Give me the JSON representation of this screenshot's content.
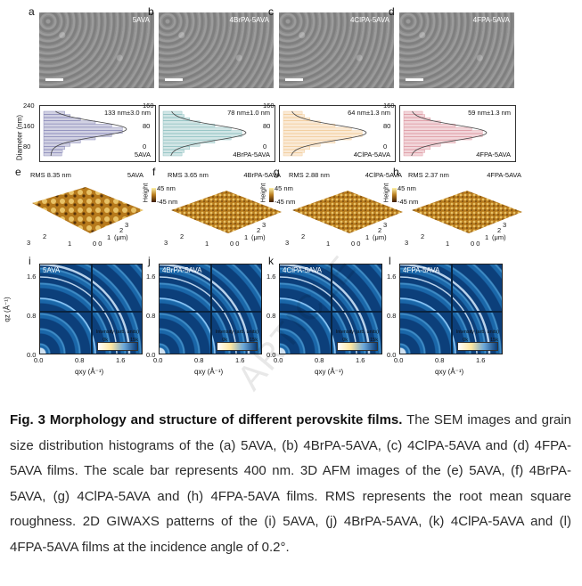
{
  "panels": [
    {
      "letter": "a",
      "film": "5AVA"
    },
    {
      "letter": "b",
      "film": "4BrPA-5AVA"
    },
    {
      "letter": "c",
      "film": "4ClPA-5AVA"
    },
    {
      "letter": "d",
      "film": "4FPA-5AVA"
    }
  ],
  "histograms": [
    {
      "stat": "133 nm±3.0 nm",
      "film": "5AVA",
      "color": "#7b7bb0",
      "yticks": [
        "240",
        "160",
        "80"
      ],
      "ymax": 240
    },
    {
      "stat": "78 nm±1.0 nm",
      "film": "4BrPA-5AVA",
      "color": "#7fb8b8",
      "yticks": [
        "160",
        "80",
        "0"
      ],
      "ymax": 160
    },
    {
      "stat": "64 nm±1.3 nm",
      "film": "4ClPA-5AVA",
      "color": "#f0c48a",
      "yticks": [
        "160",
        "80",
        "0"
      ],
      "ymax": 160
    },
    {
      "stat": "59 nm±1.3 nm",
      "film": "4FPA-5AVA",
      "color": "#d98a95",
      "yticks": [
        "160",
        "80",
        "0"
      ],
      "ymax": 160
    }
  ],
  "hist_ylabel": "Diameter (nm)",
  "afm": [
    {
      "letter": "e",
      "rms": "RMS 8.35 nm",
      "film": "5AVA"
    },
    {
      "letter": "f",
      "rms": "RMS 3.65 nm",
      "film": "4BrPA-5AVA"
    },
    {
      "letter": "g",
      "rms": "RMS 2.88 nm",
      "film": "4ClPA-5AVA"
    },
    {
      "letter": "h",
      "rms": "RMS 2.37 nm",
      "film": "4FPA-5AVA"
    }
  ],
  "afm_height_label": "Height",
  "afm_scale_top": "45 nm",
  "afm_scale_bottom": "-45 nm",
  "afm_unit": "(μm)",
  "giwaxs": [
    {
      "letter": "i",
      "film": "5AVA"
    },
    {
      "letter": "j",
      "film": "4BrPA-5AVA"
    },
    {
      "letter": "k",
      "film": "4ClPA-5AVA"
    },
    {
      "letter": "l",
      "film": "4FPA-5AVA"
    }
  ],
  "giwaxs_yticks": [
    "1.6",
    "0.8",
    "0.0"
  ],
  "giwaxs_xticks": [
    "0.0",
    "0.8",
    "1.6"
  ],
  "giwaxs_ylabel": "qz (Å⁻¹)",
  "giwaxs_xlabel": "qxy (Å⁻¹)",
  "colorbar_title": "Intensity (arb. units)",
  "colorbar_min": "0k",
  "colorbar_max": "15k",
  "caption_bold": "Fig. 3 Morphology and structure of different perovskite films.",
  "caption_text": " The SEM images and grain size distribution histograms of the (a) 5AVA, (b) 4BrPA-5AVA, (c) 4ClPA-5AVA and (d) 4FPA-5AVA films. The scale bar represents 400 nm. 3D AFM images of the (e) 5AVA, (f) 4BrPA-5AVA, (g) 4ClPA-5AVA and (h) 4FPA-5AVA films. RMS represents the root mean square roughness. 2D GIWAXS patterns of the (i) 5AVA, (j) 4BrPA-5AVA, (k) 4ClPA-5AVA and (l) 4FPA-5AVA films at the incidence angle of 0.2°.",
  "watermark": "ARTICLE"
}
